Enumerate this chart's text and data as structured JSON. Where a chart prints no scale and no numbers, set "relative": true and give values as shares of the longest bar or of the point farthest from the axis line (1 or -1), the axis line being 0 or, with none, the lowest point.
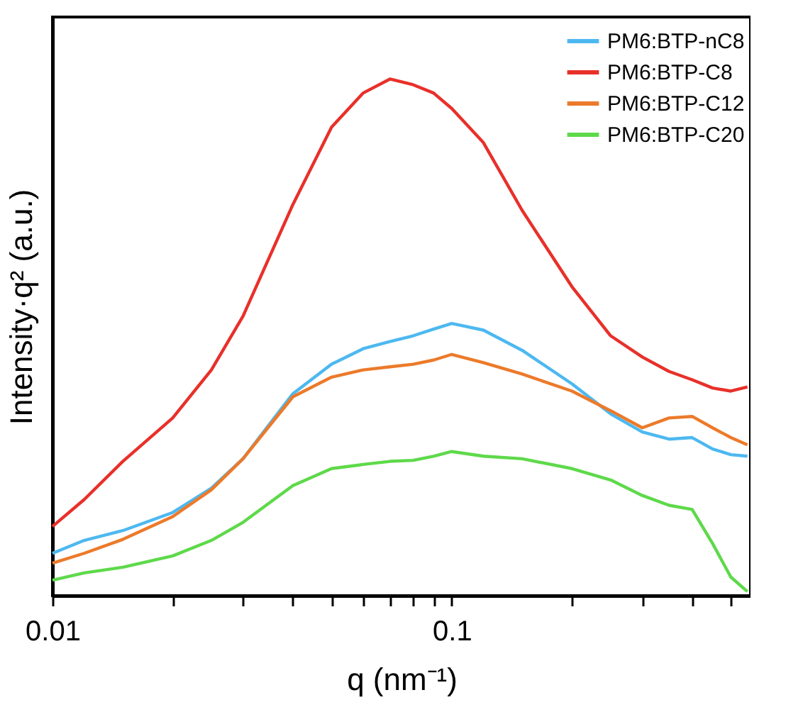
{
  "chart_data": {
    "type": "line",
    "xlabel": "q (nm⁻¹)",
    "ylabel": "Intensity·q² (a.u.)",
    "relative": true,
    "log": "x",
    "legend": "top right",
    "grid": false,
    "marker": "none",
    "line_style": "solid",
    "x": [
      0.01,
      0.012,
      0.015,
      0.02,
      0.025,
      0.03,
      0.04,
      0.05,
      0.06,
      0.07,
      0.08,
      0.09,
      0.1,
      0.12,
      0.15,
      0.2,
      0.25,
      0.3,
      0.35,
      0.4,
      0.45,
      0.5,
      0.55
    ],
    "xlim": [
      0.01,
      0.56
    ],
    "xticks": [
      0.01,
      {
        "value": 0.02,
        "label": null
      },
      {
        "value": 0.03,
        "label": null
      },
      {
        "value": 0.04,
        "label": null
      },
      {
        "value": 0.05,
        "label": null
      },
      {
        "value": 0.06,
        "label": null
      },
      {
        "value": 0.07,
        "label": null
      },
      {
        "value": 0.08,
        "label": null
      },
      {
        "value": 0.09,
        "label": null
      },
      0.1,
      {
        "value": 0.2,
        "label": null
      },
      {
        "value": 0.3,
        "label": null
      },
      {
        "value": 0.4,
        "label": null
      },
      {
        "value": 0.5,
        "label": null
      }
    ],
    "series": [
      {
        "name": "PM6:BTP-nC8",
        "color": "#4db8f0",
        "values": [
          0.082,
          0.107,
          0.126,
          0.161,
          0.208,
          0.265,
          0.391,
          0.448,
          0.478,
          0.492,
          0.503,
          0.516,
          0.527,
          0.514,
          0.475,
          0.41,
          0.352,
          0.317,
          0.303,
          0.306,
          0.284,
          0.273,
          0.27
        ]
      },
      {
        "name": "PM6:BTP-C8",
        "color": "#e8302a",
        "values": [
          0.134,
          0.186,
          0.26,
          0.344,
          0.437,
          0.541,
          0.757,
          0.907,
          0.973,
          1.0,
          0.989,
          0.973,
          0.943,
          0.877,
          0.746,
          0.598,
          0.503,
          0.462,
          0.434,
          0.418,
          0.402,
          0.396,
          0.404
        ]
      },
      {
        "name": "PM6:BTP-C12",
        "color": "#ec7a2a",
        "values": [
          0.063,
          0.082,
          0.109,
          0.153,
          0.205,
          0.265,
          0.385,
          0.423,
          0.437,
          0.443,
          0.448,
          0.456,
          0.467,
          0.451,
          0.429,
          0.396,
          0.358,
          0.325,
          0.344,
          0.347,
          0.325,
          0.306,
          0.292
        ]
      },
      {
        "name": "PM6:BTP-C20",
        "color": "#5ed94a",
        "values": [
          0.03,
          0.044,
          0.055,
          0.077,
          0.107,
          0.142,
          0.213,
          0.246,
          0.254,
          0.26,
          0.262,
          0.27,
          0.279,
          0.27,
          0.265,
          0.246,
          0.224,
          0.194,
          0.175,
          0.167,
          0.101,
          0.036,
          0.008
        ]
      }
    ]
  }
}
